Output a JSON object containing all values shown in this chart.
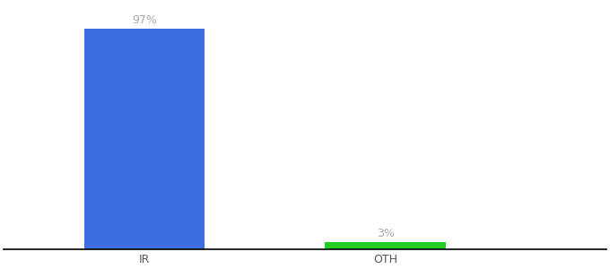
{
  "categories": [
    "IR",
    "OTH"
  ],
  "values": [
    97,
    3
  ],
  "bar_colors": [
    "#3d6de0",
    "#22cc22"
  ],
  "value_labels": [
    "97%",
    "3%"
  ],
  "ylim": [
    0,
    108
  ],
  "background_color": "#ffffff",
  "bar_width": 0.6,
  "label_fontsize": 9,
  "tick_fontsize": 9,
  "label_color": "#aaaaaa",
  "tick_color": "#555555",
  "xlim": [
    -0.2,
    2.8
  ]
}
